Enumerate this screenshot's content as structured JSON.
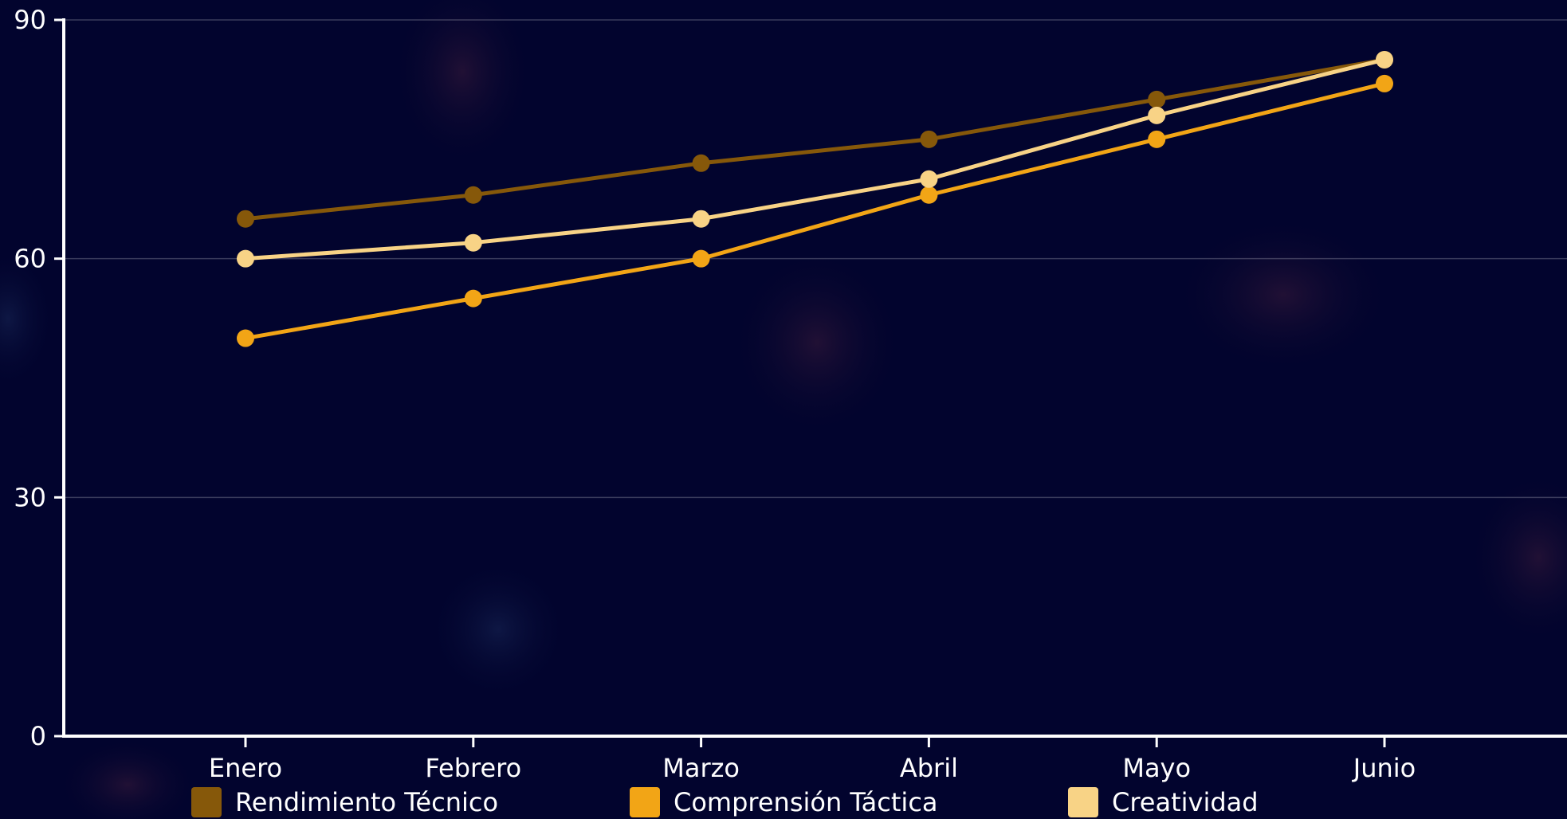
{
  "chart_data": {
    "type": "line",
    "title": "",
    "xlabel": "",
    "ylabel": "",
    "categories": [
      "Enero",
      "Febrero",
      "Marzo",
      "Abril",
      "Mayo",
      "Junio"
    ],
    "ylim": [
      0,
      90
    ],
    "yticks": [
      0,
      30,
      60,
      90
    ],
    "grid": true,
    "legend_position": "bottom",
    "series": [
      {
        "name": "Rendimiento Técnico",
        "color": "#86580a",
        "values": [
          65,
          68,
          72,
          75,
          80,
          85
        ]
      },
      {
        "name": "Comprensión Táctica",
        "color": "#f2a516",
        "values": [
          50,
          55,
          60,
          68,
          75,
          82
        ]
      },
      {
        "name": "Creatividad",
        "color": "#f8d386",
        "values": [
          60,
          62,
          65,
          70,
          78,
          85
        ]
      }
    ]
  }
}
